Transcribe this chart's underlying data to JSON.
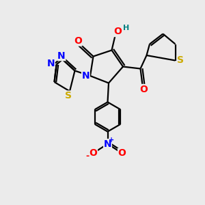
{
  "bg_color": "#ebebeb",
  "bond_color": "#000000",
  "bond_width": 1.6,
  "atom_colors": {
    "C": "#000000",
    "N": "#0000ff",
    "O": "#ff0000",
    "S": "#ccaa00",
    "H": "#008080"
  },
  "font_size": 9
}
